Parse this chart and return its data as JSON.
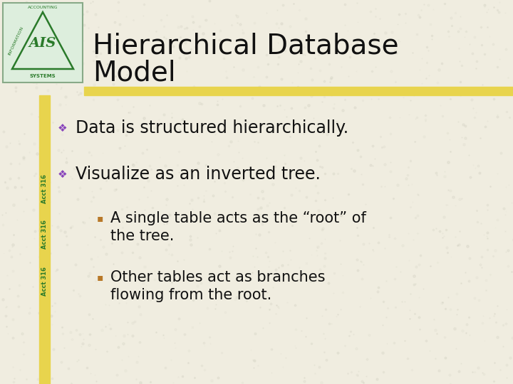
{
  "title_line1": "Hierarchical Database",
  "title_line2": "Model",
  "background_color": "#f0ede0",
  "title_color": "#111111",
  "title_fontsize": 28,
  "separator_color": "#e8d44d",
  "left_bar_color": "#e8d44d",
  "logo_text_color": "#2a7a2a",
  "sidebar_text": "Acct 316",
  "sidebar_text_color": "#2a7a2a",
  "bullet1_text": "Data is structured hierarchically.",
  "bullet2_text": "Visualize as an inverted tree.",
  "sub_bullet1_line1": "A single table acts as the “root” of",
  "sub_bullet1_line2": "the tree.",
  "sub_bullet2_line1": "Other tables act as branches",
  "sub_bullet2_line2": "flowing from the root.",
  "bullet_color": "#8844bb",
  "sub_bullet_color": "#b87828",
  "body_text_color": "#111111",
  "body_fontsize": 17,
  "sub_body_fontsize": 15,
  "fig_width": 7.2,
  "fig_height": 5.4,
  "dpi": 100
}
